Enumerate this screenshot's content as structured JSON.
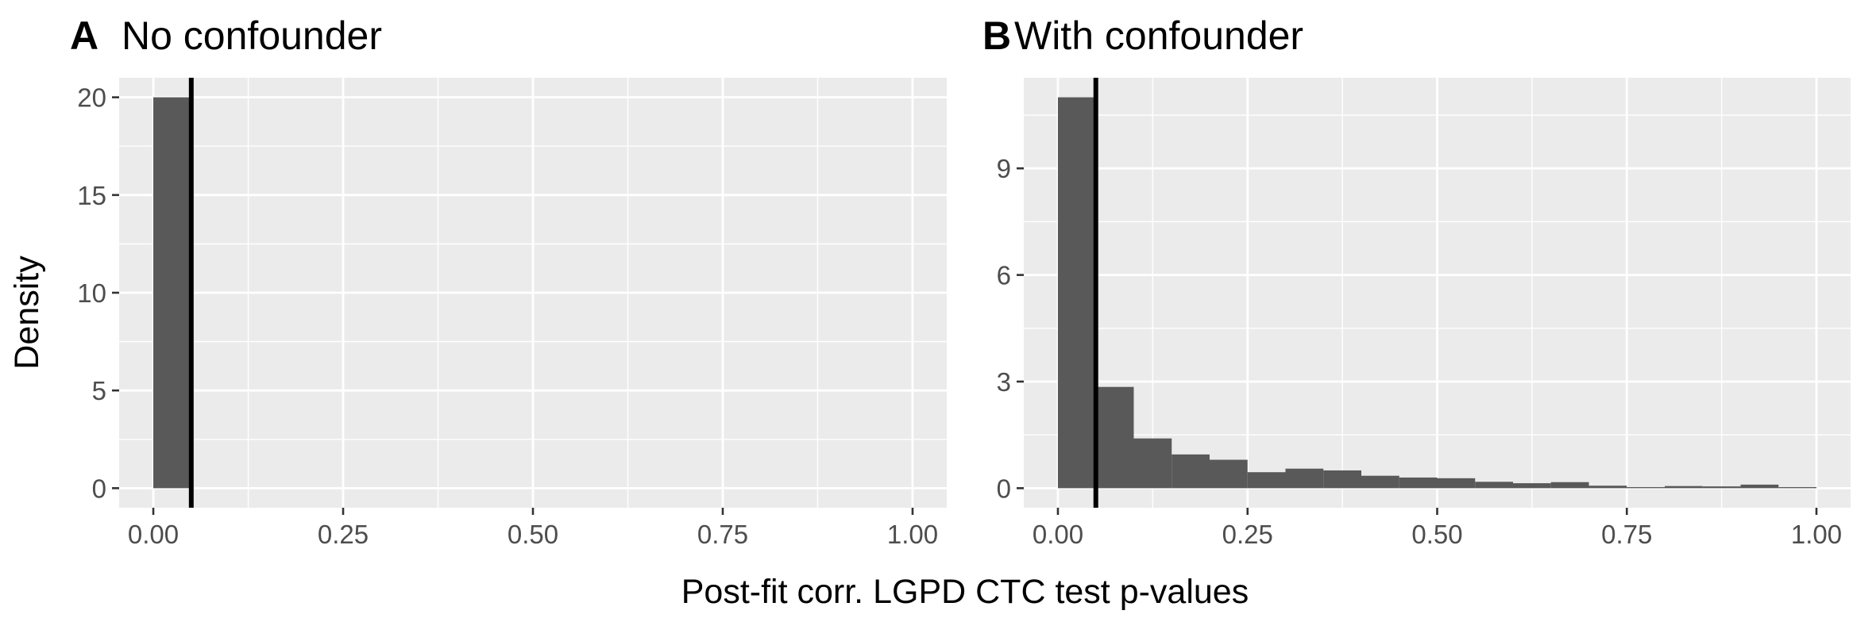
{
  "figure": {
    "xlabel": "Post-fit corr. LGPD CTC test p-values",
    "ylabel": "Density"
  },
  "chart_data": [
    {
      "type": "bar",
      "panel": "A",
      "title": "No confounder",
      "xlabel": "Post-fit corr. LGPD CTC test p-values",
      "ylabel": "Density",
      "xlim": [
        -0.045,
        1.045
      ],
      "ylim": [
        -1.0,
        21.0
      ],
      "xticks": [
        0.0,
        0.25,
        0.5,
        0.75,
        1.0
      ],
      "xtick_labels": [
        "0.00",
        "0.25",
        "0.50",
        "0.75",
        "1.00"
      ],
      "yticks": [
        0,
        5,
        10,
        15,
        20
      ],
      "ytick_labels": [
        "0",
        "5",
        "10",
        "15",
        "20"
      ],
      "bin_width": 0.05,
      "bins_start": [
        0.0
      ],
      "values": [
        20
      ],
      "vline_x": 0.05,
      "bar_color": "#595959",
      "panel_bg": "#ebebeb",
      "grid": true
    },
    {
      "type": "bar",
      "panel": "B",
      "title": "With confounder",
      "xlabel": "Post-fit corr. LGPD CTC test p-values",
      "ylabel": "Density",
      "xlim": [
        -0.045,
        1.045
      ],
      "ylim": [
        -0.55,
        11.55
      ],
      "xticks": [
        0.0,
        0.25,
        0.5,
        0.75,
        1.0
      ],
      "xtick_labels": [
        "0.00",
        "0.25",
        "0.50",
        "0.75",
        "1.00"
      ],
      "yticks": [
        0,
        3,
        6,
        9
      ],
      "ytick_labels": [
        "0",
        "3",
        "6",
        "9"
      ],
      "bin_width": 0.05,
      "bins_start": [
        0.0,
        0.05,
        0.1,
        0.15,
        0.2,
        0.25,
        0.3,
        0.35,
        0.4,
        0.45,
        0.5,
        0.55,
        0.6,
        0.65,
        0.7,
        0.75,
        0.8,
        0.85,
        0.9,
        0.95
      ],
      "values": [
        11.0,
        2.85,
        1.4,
        0.95,
        0.8,
        0.45,
        0.55,
        0.5,
        0.35,
        0.3,
        0.28,
        0.18,
        0.14,
        0.17,
        0.07,
        0.03,
        0.06,
        0.05,
        0.1,
        0.03
      ],
      "vline_x": 0.05,
      "bar_color": "#595959",
      "panel_bg": "#ebebeb",
      "grid": true
    }
  ]
}
